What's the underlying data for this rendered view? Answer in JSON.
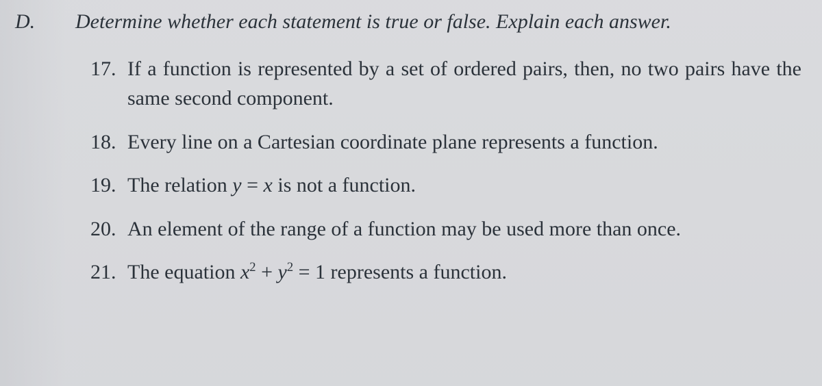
{
  "background_color": "#d9dadd",
  "text_color": "#2b323a",
  "section": {
    "letter": "D.",
    "instruction": "Determine whether each statement is true or false. Explain each answer."
  },
  "items": [
    {
      "num": "17.",
      "text": "If a function is represented by a set of ordered pairs, then, no two pairs have the same second component."
    },
    {
      "num": "18.",
      "text": "Every line on a Cartesian coordinate plane represents a function."
    },
    {
      "num": "19.",
      "prefix": "The relation ",
      "equation_html": "y = x",
      "suffix": " is not a function."
    },
    {
      "num": "20.",
      "text": "An element of the range of a function may be used more than once."
    },
    {
      "num": "21.",
      "prefix": "The equation ",
      "equation_html": "x² + y² = 1",
      "suffix": " represents a function."
    }
  ],
  "font_size_body": 30,
  "font_size_section": 30
}
